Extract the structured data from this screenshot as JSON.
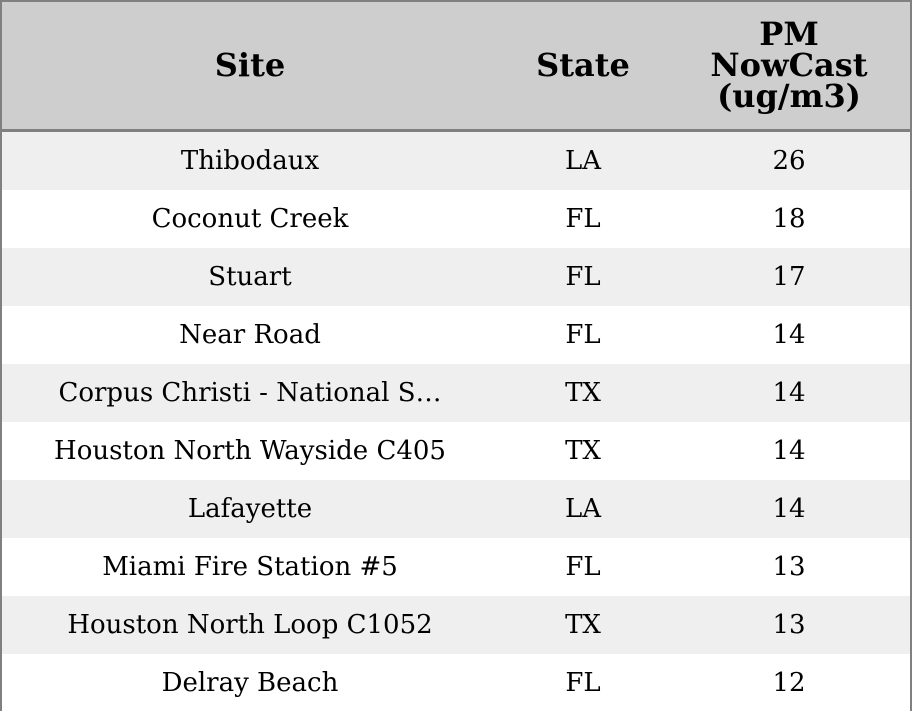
{
  "chart_data": {
    "type": "table",
    "columns": [
      "Site",
      "State",
      "PM NowCast (ug/m3)"
    ],
    "column_lines": [
      [
        "Site"
      ],
      [
        "State"
      ],
      [
        "PM",
        "NowCast",
        "(ug/m3)"
      ]
    ],
    "rows": [
      [
        "Thibodaux",
        "LA",
        "26"
      ],
      [
        "Coconut Creek",
        "FL",
        "18"
      ],
      [
        "Stuart",
        "FL",
        "17"
      ],
      [
        "Near Road",
        "FL",
        "14"
      ],
      [
        "Corpus Christi - National S…",
        "TX",
        "14"
      ],
      [
        "Houston North Wayside C405",
        "TX",
        "14"
      ],
      [
        "Lafayette",
        "LA",
        "14"
      ],
      [
        "Miami Fire Station #5",
        "FL",
        "13"
      ],
      [
        "Houston North Loop C1052",
        "TX",
        "13"
      ],
      [
        "Delray Beach",
        "FL",
        "12"
      ]
    ]
  },
  "colors": {
    "header_bg": "#cecece",
    "stripe_bg": "#efefef",
    "row_bg": "#ffffff",
    "border": "#808080",
    "text": "#000000"
  }
}
